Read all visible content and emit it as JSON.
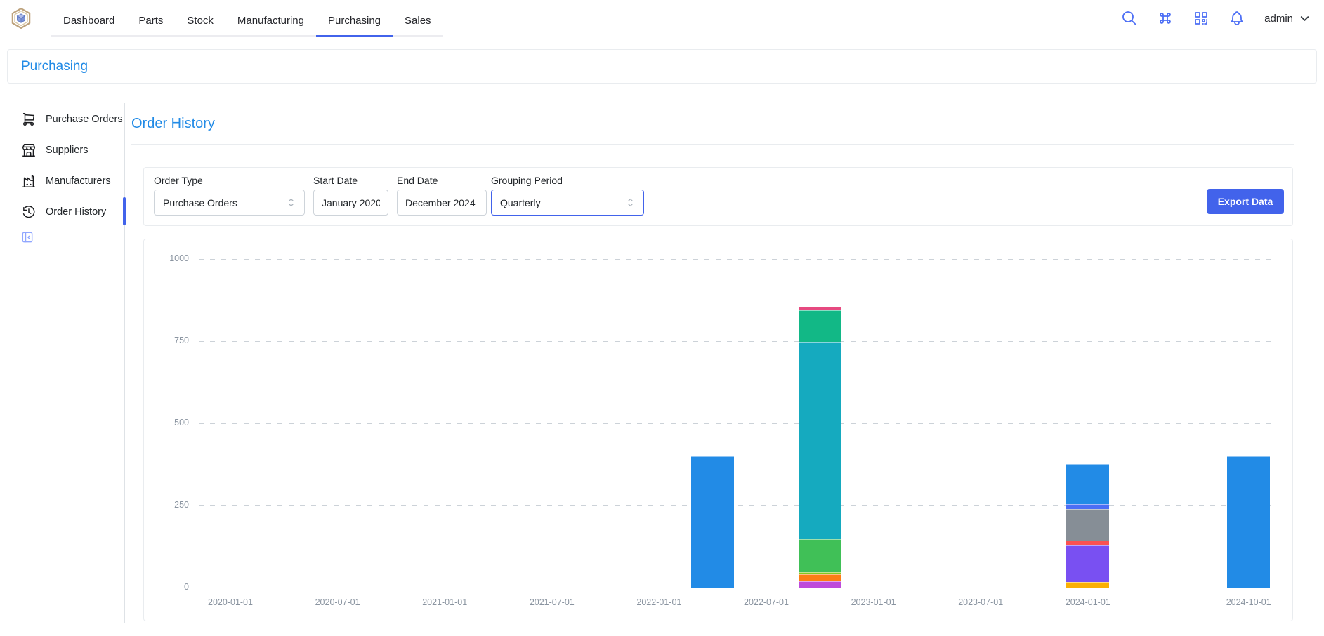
{
  "header": {
    "tabs": [
      {
        "label": "Dashboard",
        "active": false
      },
      {
        "label": "Parts",
        "active": false
      },
      {
        "label": "Stock",
        "active": false
      },
      {
        "label": "Manufacturing",
        "active": false
      },
      {
        "label": "Purchasing",
        "active": true
      },
      {
        "label": "Sales",
        "active": false
      }
    ],
    "action_icons": [
      "search-icon",
      "command-icon",
      "qrcode-icon",
      "bell-icon"
    ],
    "user": {
      "name": "admin"
    }
  },
  "breadcrumb": {
    "label": "Purchasing"
  },
  "sidebar": {
    "items": [
      {
        "label": "Purchase Orders",
        "icon": "shopping-cart-icon",
        "active": false
      },
      {
        "label": "Suppliers",
        "icon": "building-store-icon",
        "active": false
      },
      {
        "label": "Manufacturers",
        "icon": "factory-icon",
        "active": false
      },
      {
        "label": "Order History",
        "icon": "history-icon",
        "active": true
      }
    ],
    "collapse_icon": "layout-sidebar-icon"
  },
  "content": {
    "title": "Order History",
    "filters": {
      "order_type": {
        "label": "Order Type",
        "value": "Purchase Orders"
      },
      "start_date": {
        "label": "Start Date",
        "value": "January 2020"
      },
      "end_date": {
        "label": "End Date",
        "value": "December 2024"
      },
      "grouping_period": {
        "label": "Grouping Period",
        "value": "Quarterly"
      }
    },
    "export_button": "Export Data"
  },
  "colors": {
    "accent": "#4263eb",
    "heading_blue": "#228be6",
    "header_icon_blue": "#4c6ef5"
  },
  "chart_data": {
    "type": "bar",
    "stacked": true,
    "title": "",
    "xlabel": "",
    "ylabel": "",
    "ylim": [
      0,
      1050
    ],
    "y_ticks": [
      0,
      250,
      500,
      750,
      1000
    ],
    "x_tick_labels": [
      "2020-01-01",
      "2020-07-01",
      "2021-01-01",
      "2021-07-01",
      "2022-01-01",
      "2022-07-01",
      "2023-01-01",
      "2023-07-01",
      "2024-01-01",
      "2024-10-01"
    ],
    "grid": "horizontal-dashed",
    "legend": "none",
    "segments_order": "bottom-to-top",
    "bars": [
      {
        "date": "2022-04-01",
        "total": 400,
        "segments": [
          {
            "color": "#228be6",
            "value": 400
          }
        ]
      },
      {
        "date": "2022-10-01",
        "total": 855,
        "segments": [
          {
            "color": "#be4bdb",
            "value": 20
          },
          {
            "color": "#fd7e14",
            "value": 20
          },
          {
            "color": "#82c91e",
            "value": 8
          },
          {
            "color": "#40c057",
            "value": 100
          },
          {
            "color": "#15aabf",
            "value": 600
          },
          {
            "color": "#12b886",
            "value": 95
          },
          {
            "color": "#e64980",
            "value": 12
          }
        ]
      },
      {
        "date": "2024-01-01",
        "total": 377,
        "segments": [
          {
            "color": "#fab005",
            "value": 17
          },
          {
            "color": "#7950f2",
            "value": 112
          },
          {
            "color": "#fa5252",
            "value": 15
          },
          {
            "color": "#868e96",
            "value": 96
          },
          {
            "color": "#4c6ef5",
            "value": 15
          },
          {
            "color": "#228be6",
            "value": 122
          }
        ]
      },
      {
        "date": "2024-10-01",
        "total": 400,
        "segments": [
          {
            "color": "#228be6",
            "value": 400
          }
        ]
      }
    ]
  }
}
